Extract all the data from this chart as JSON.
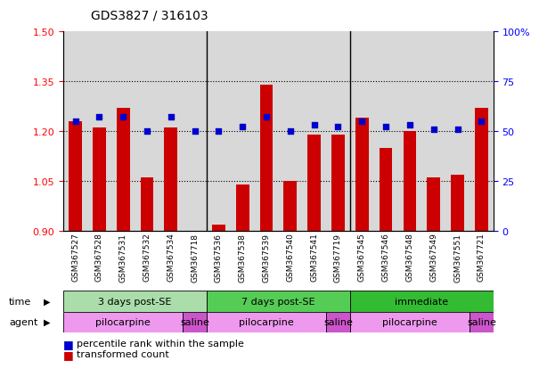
{
  "title": "GDS3827 / 316103",
  "samples": [
    "GSM367527",
    "GSM367528",
    "GSM367531",
    "GSM367532",
    "GSM367534",
    "GSM367718",
    "GSM367536",
    "GSM367538",
    "GSM367539",
    "GSM367540",
    "GSM367541",
    "GSM367719",
    "GSM367545",
    "GSM367546",
    "GSM367548",
    "GSM367549",
    "GSM367551",
    "GSM367721"
  ],
  "red_values": [
    1.23,
    1.21,
    1.27,
    1.06,
    1.21,
    0.9,
    0.92,
    1.04,
    1.34,
    1.05,
    1.19,
    1.19,
    1.24,
    1.15,
    1.2,
    1.06,
    1.07,
    1.27
  ],
  "blue_values": [
    55,
    57,
    57,
    50,
    57,
    50,
    50,
    52,
    57,
    50,
    53,
    52,
    55,
    52,
    53,
    51,
    51,
    55
  ],
  "ylim_left": [
    0.9,
    1.5
  ],
  "ylim_right": [
    0,
    100
  ],
  "yticks_left": [
    0.9,
    1.05,
    1.2,
    1.35,
    1.5
  ],
  "yticks_right": [
    0,
    25,
    50,
    75,
    100
  ],
  "hlines": [
    1.05,
    1.2,
    1.35
  ],
  "bar_color": "#cc0000",
  "dot_color": "#0000cc",
  "bar_width": 0.55,
  "time_groups": [
    {
      "label": "3 days post-SE",
      "start": 0,
      "end": 5,
      "color": "#aaddaa"
    },
    {
      "label": "7 days post-SE",
      "start": 6,
      "end": 11,
      "color": "#55cc55"
    },
    {
      "label": "immediate",
      "start": 12,
      "end": 17,
      "color": "#33bb33"
    }
  ],
  "agent_groups": [
    {
      "label": "pilocarpine",
      "start": 0,
      "end": 4,
      "color": "#ee99ee"
    },
    {
      "label": "saline",
      "start": 5,
      "end": 5,
      "color": "#cc55cc"
    },
    {
      "label": "pilocarpine",
      "start": 6,
      "end": 10,
      "color": "#ee99ee"
    },
    {
      "label": "saline",
      "start": 11,
      "end": 11,
      "color": "#cc55cc"
    },
    {
      "label": "pilocarpine",
      "start": 12,
      "end": 16,
      "color": "#ee99ee"
    },
    {
      "label": "saline",
      "start": 17,
      "end": 17,
      "color": "#cc55cc"
    }
  ],
  "legend_items": [
    {
      "label": "transformed count",
      "color": "#cc0000"
    },
    {
      "label": "percentile rank within the sample",
      "color": "#0000cc"
    }
  ],
  "bg_color": "#ffffff",
  "sample_bg_color": "#d8d8d8",
  "time_label": "time",
  "agent_label": "agent"
}
